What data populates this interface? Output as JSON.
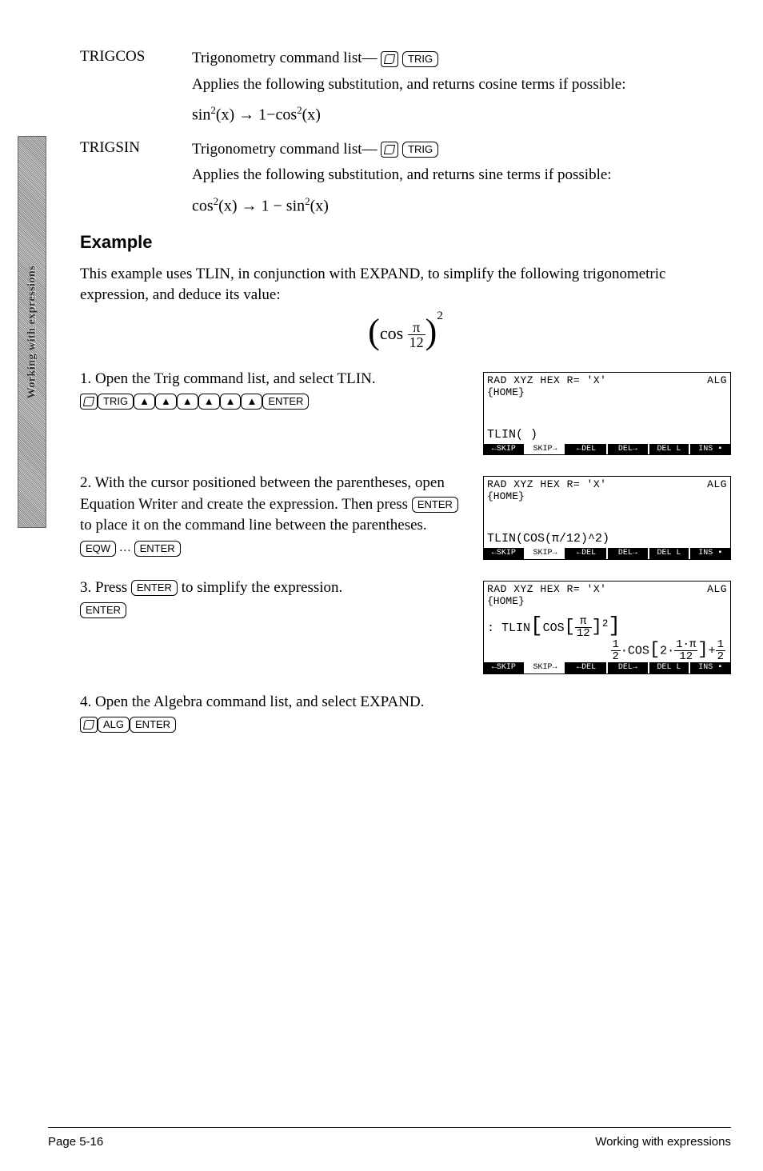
{
  "side_tab": "Working with expressions",
  "defs": [
    {
      "term": "TRIGCOS",
      "intro": "Trigonometry command list—",
      "keys": [
        "TRIG"
      ],
      "explain": "Applies the following substitution, and returns cosine terms if possible:",
      "formula_lhs": "sin",
      "formula_arrow": "→",
      "formula_rhs_a": "1−cos",
      "formula_var": "(x)"
    },
    {
      "term": "TRIGSIN",
      "intro": "Trigonometry command list—",
      "keys": [
        "TRIG"
      ],
      "explain": "Applies the following substitution, and returns sine terms if possible:",
      "formula_lhs": "cos",
      "formula_arrow": "→",
      "formula_rhs_a": "1 − sin",
      "formula_var": "(x)"
    }
  ],
  "example_heading": "Example",
  "example_intro": "This example uses TLIN, in conjunction with EXPAND, to simplify the following trigonometric expression, and deduce its value:",
  "center_formula": {
    "fn": "cos",
    "num": "π",
    "den": "12",
    "exp": "2"
  },
  "steps": [
    {
      "num": "1.",
      "text": "Open the Trig command list, and select TLIN.",
      "keys_shift": true,
      "keys": [
        "TRIG",
        "▲",
        "▲",
        "▲",
        "▲",
        "▲",
        "▲",
        "ENTER"
      ],
      "calc": {
        "hdr_l": "RAD XYZ HEX R= 'X'",
        "hdr_r": "ALG",
        "home": "{HOME}",
        "line1": "TLIN( )",
        "soft": [
          "←SKIP",
          "SKIP→",
          "←DEL",
          "DEL→",
          "DEL L",
          "INS ▪"
        ]
      }
    },
    {
      "num": "2.",
      "text": "With the cursor positioned between the parentheses, open Equation Writer and create the expression. Then press ",
      "text_after": " to place it on the command line between the parentheses.",
      "inlinekey": "ENTER",
      "keys_shift": false,
      "keys": [
        "EQW",
        "…",
        "ENTER"
      ],
      "calc": {
        "hdr_l": "RAD XYZ HEX R= 'X'",
        "hdr_r": "ALG",
        "home": "{HOME}",
        "line1": "TLIN(COS(π/12)^2)",
        "soft": [
          "←SKIP",
          "SKIP→",
          "←DEL",
          "DEL→",
          "DEL L",
          "INS ▪"
        ]
      }
    },
    {
      "num": "3.",
      "text_a": "Press ",
      "inlinekey": "ENTER",
      "text_b": " to simplify the expression.",
      "keys_shift": false,
      "keys": [
        "ENTER"
      ],
      "calc": {
        "hdr_l": "RAD XYZ HEX R= 'X'",
        "hdr_r": "ALG",
        "home": "{HOME}",
        "result_label": ": TLIN",
        "res_fn": "COS",
        "res_num": "π",
        "res_den": "12",
        "res_exp": "2",
        "rhs_half": "1",
        "rhs_half_d": "2",
        "rhs_cos": "·COS",
        "rhs_arg_a": "2·",
        "rhs_arg_num": "1·π",
        "rhs_arg_den": "12",
        "rhs_plus": "+",
        "rhs_h2": "1",
        "rhs_h2d": "2",
        "soft": [
          "←SKIP",
          "SKIP→",
          "←DEL",
          "DEL→",
          "DEL L",
          "INS ▪"
        ]
      }
    },
    {
      "num": "4.",
      "text": "Open the Algebra command list, and select EXPAND.",
      "keys_shift": true,
      "keys": [
        "ALG",
        "ENTER"
      ]
    }
  ],
  "footer_left": "Page 5-16",
  "footer_right": "Working with expressions"
}
